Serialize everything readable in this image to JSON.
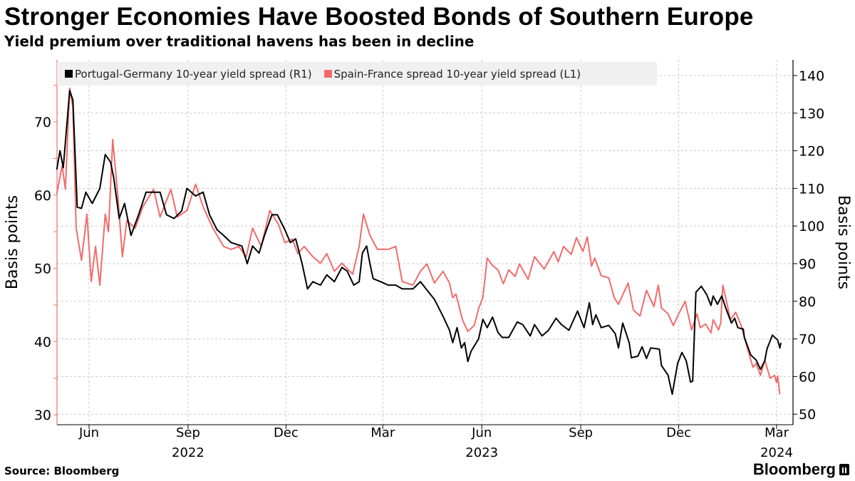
{
  "header": {
    "title": "Stronger Economies Have Boosted Bonds of Southern Europe",
    "subtitle": "Yield premium over traditional havens has been in decline"
  },
  "footer": {
    "source": "Source: Bloomberg",
    "logo": "Bloomberg"
  },
  "chart_data": {
    "type": "line",
    "title": "Stronger Economies Have Boosted Bonds of Southern Europe",
    "subtitle": "Yield premium over traditional havens has been in decline",
    "legend_position": "top-left",
    "grid": true,
    "y_left": {
      "label": "Basis points",
      "range": [
        29,
        77
      ],
      "ticks": [
        30,
        40,
        50,
        60,
        70
      ]
    },
    "y_right": {
      "label": "Basis points",
      "range": [
        48,
        143
      ],
      "ticks": [
        50,
        60,
        70,
        80,
        90,
        100,
        110,
        120,
        130,
        140
      ]
    },
    "x_axis": {
      "range": [
        "2022-05-02",
        "2024-03-22"
      ],
      "ticks": [
        {
          "date": "2022-06-01",
          "label": "Jun",
          "year": ""
        },
        {
          "date": "2022-09-01",
          "label": "Sep",
          "year": "2022"
        },
        {
          "date": "2022-12-01",
          "label": "Dec",
          "year": ""
        },
        {
          "date": "2023-03-01",
          "label": "Mar",
          "year": ""
        },
        {
          "date": "2023-06-01",
          "label": "Jun",
          "year": "2023"
        },
        {
          "date": "2023-09-01",
          "label": "Sep",
          "year": ""
        },
        {
          "date": "2023-12-01",
          "label": "Dec",
          "year": ""
        },
        {
          "date": "2024-03-01",
          "label": "Mar",
          "year": "2024"
        }
      ]
    },
    "series": [
      {
        "name": "Portugal-Germany 10-year yield spread (R1)",
        "axis": "right",
        "color": "#000000",
        "points": [
          [
            "2022-05-02",
            115
          ],
          [
            "2022-05-05",
            120
          ],
          [
            "2022-05-08",
            115.5
          ],
          [
            "2022-05-14",
            136
          ],
          [
            "2022-05-17",
            133.5
          ],
          [
            "2022-05-21",
            105
          ],
          [
            "2022-05-25",
            104.7
          ],
          [
            "2022-05-29",
            109
          ],
          [
            "2022-06-04",
            106
          ],
          [
            "2022-06-11",
            110
          ],
          [
            "2022-06-16",
            119
          ],
          [
            "2022-06-21",
            117
          ],
          [
            "2022-06-24",
            112.7
          ],
          [
            "2022-06-29",
            102
          ],
          [
            "2022-07-04",
            106
          ],
          [
            "2022-07-10",
            97.5
          ],
          [
            "2022-07-17",
            103
          ],
          [
            "2022-07-24",
            109
          ],
          [
            "2022-07-31",
            109
          ],
          [
            "2022-08-06",
            109
          ],
          [
            "2022-08-12",
            103
          ],
          [
            "2022-08-19",
            102
          ],
          [
            "2022-08-26",
            104
          ],
          [
            "2022-08-31",
            110
          ],
          [
            "2022-09-08",
            108
          ],
          [
            "2022-09-15",
            109
          ],
          [
            "2022-09-21",
            103
          ],
          [
            "2022-09-28",
            99
          ],
          [
            "2022-10-04",
            97.5
          ],
          [
            "2022-10-11",
            95.6
          ],
          [
            "2022-10-21",
            94.7
          ],
          [
            "2022-10-26",
            90
          ],
          [
            "2022-10-31",
            94.7
          ],
          [
            "2022-11-06",
            92.8
          ],
          [
            "2022-11-11",
            97.5
          ],
          [
            "2022-11-18",
            103
          ],
          [
            "2022-11-23",
            103
          ],
          [
            "2022-11-30",
            99
          ],
          [
            "2022-12-05",
            95.6
          ],
          [
            "2022-12-10",
            96.6
          ],
          [
            "2022-12-16",
            90
          ],
          [
            "2022-12-21",
            83.3
          ],
          [
            "2022-12-26",
            85.2
          ],
          [
            "2023-01-02",
            84.3
          ],
          [
            "2023-01-08",
            87
          ],
          [
            "2023-01-15",
            85.2
          ],
          [
            "2023-01-22",
            89
          ],
          [
            "2023-01-27",
            88
          ],
          [
            "2023-02-02",
            84.3
          ],
          [
            "2023-02-07",
            85.2
          ],
          [
            "2023-02-10",
            92.8
          ],
          [
            "2023-02-14",
            94.7
          ],
          [
            "2023-02-17",
            90
          ],
          [
            "2023-02-20",
            86
          ],
          [
            "2023-02-27",
            85.2
          ],
          [
            "2023-03-06",
            84.3
          ],
          [
            "2023-03-13",
            84.3
          ],
          [
            "2023-03-19",
            83.3
          ],
          [
            "2023-03-29",
            83.3
          ],
          [
            "2023-04-05",
            85.2
          ],
          [
            "2023-04-11",
            83
          ],
          [
            "2023-04-18",
            80.5
          ],
          [
            "2023-04-26",
            76
          ],
          [
            "2023-05-02",
            72.3
          ],
          [
            "2023-05-05",
            69
          ],
          [
            "2023-05-09",
            73
          ],
          [
            "2023-05-13",
            67.6
          ],
          [
            "2023-05-16",
            69
          ],
          [
            "2023-05-19",
            64
          ],
          [
            "2023-05-22",
            66.7
          ],
          [
            "2023-05-29",
            70
          ],
          [
            "2023-06-02",
            75.2
          ],
          [
            "2023-06-06",
            73
          ],
          [
            "2023-06-11",
            75.8
          ],
          [
            "2023-06-16",
            71.7
          ],
          [
            "2023-06-20",
            70.4
          ],
          [
            "2023-06-26",
            70.4
          ],
          [
            "2023-07-04",
            74.5
          ],
          [
            "2023-07-09",
            73.8
          ],
          [
            "2023-07-16",
            70.8
          ],
          [
            "2023-07-20",
            73.8
          ],
          [
            "2023-07-27",
            70.8
          ],
          [
            "2023-08-02",
            72.3
          ],
          [
            "2023-08-09",
            75.5
          ],
          [
            "2023-08-14",
            73.8
          ],
          [
            "2023-08-21",
            72.3
          ],
          [
            "2023-08-29",
            77.4
          ],
          [
            "2023-09-04",
            73
          ],
          [
            "2023-09-09",
            79.6
          ],
          [
            "2023-09-12",
            73.8
          ],
          [
            "2023-09-15",
            76.4
          ],
          [
            "2023-09-20",
            73
          ],
          [
            "2023-09-27",
            73.6
          ],
          [
            "2023-10-03",
            71.4
          ],
          [
            "2023-10-06",
            67.6
          ],
          [
            "2023-10-10",
            74.2
          ],
          [
            "2023-10-16",
            69
          ],
          [
            "2023-10-18",
            65
          ],
          [
            "2023-10-24",
            65.4
          ],
          [
            "2023-10-28",
            67.9
          ],
          [
            "2023-11-01",
            64.8
          ],
          [
            "2023-11-05",
            67.6
          ],
          [
            "2023-11-13",
            67.3
          ],
          [
            "2023-11-15",
            62.9
          ],
          [
            "2023-11-21",
            60.4
          ],
          [
            "2023-11-25",
            55.3
          ],
          [
            "2023-11-30",
            63.5
          ],
          [
            "2023-12-04",
            66.4
          ],
          [
            "2023-12-08",
            64.2
          ],
          [
            "2023-12-12",
            58.5
          ],
          [
            "2023-12-14",
            58.8
          ],
          [
            "2023-12-17",
            82.4
          ],
          [
            "2023-12-22",
            84
          ],
          [
            "2023-12-27",
            81.8
          ],
          [
            "2023-12-31",
            78.9
          ],
          [
            "2024-01-02",
            81.4
          ],
          [
            "2024-01-06",
            79.2
          ],
          [
            "2024-01-10",
            81.4
          ],
          [
            "2024-01-14",
            78
          ],
          [
            "2024-01-19",
            74.2
          ],
          [
            "2024-01-22",
            75.5
          ],
          [
            "2024-01-25",
            73
          ],
          [
            "2024-01-30",
            72.6
          ],
          [
            "2024-01-31",
            70.4
          ],
          [
            "2024-02-06",
            65.7
          ],
          [
            "2024-02-11",
            64.4
          ],
          [
            "2024-02-15",
            61.9
          ],
          [
            "2024-02-19",
            64.2
          ],
          [
            "2024-02-21",
            67.3
          ],
          [
            "2024-02-26",
            71
          ],
          [
            "2024-03-02",
            69.7
          ],
          [
            "2024-03-04",
            67.6
          ],
          [
            "2024-03-05",
            69
          ]
        ]
      },
      {
        "name": "Spain-France spread 10-year yield spread (L1)",
        "axis": "left",
        "color": "#f26b6b",
        "points": [
          [
            "2022-05-02",
            60.2
          ],
          [
            "2022-05-07",
            64
          ],
          [
            "2022-05-10",
            60.8
          ],
          [
            "2022-05-14",
            74.6
          ],
          [
            "2022-05-17",
            72
          ],
          [
            "2022-05-20",
            55.5
          ],
          [
            "2022-05-25",
            51.1
          ],
          [
            "2022-05-30",
            57.4
          ],
          [
            "2022-06-03",
            48.2
          ],
          [
            "2022-06-07",
            53
          ],
          [
            "2022-06-11",
            47.7
          ],
          [
            "2022-06-16",
            57.4
          ],
          [
            "2022-06-19",
            55
          ],
          [
            "2022-06-23",
            67.6
          ],
          [
            "2022-06-28",
            59.4
          ],
          [
            "2022-07-02",
            51.6
          ],
          [
            "2022-07-06",
            56.5
          ],
          [
            "2022-07-14",
            55.5
          ],
          [
            "2022-07-21",
            58.4
          ],
          [
            "2022-07-31",
            60.8
          ],
          [
            "2022-08-06",
            57
          ],
          [
            "2022-08-16",
            60.8
          ],
          [
            "2022-08-22",
            57
          ],
          [
            "2022-08-31",
            57.9
          ],
          [
            "2022-09-08",
            61.5
          ],
          [
            "2022-09-15",
            58.4
          ],
          [
            "2022-09-24",
            55.5
          ],
          [
            "2022-10-04",
            53
          ],
          [
            "2022-10-11",
            52.6
          ],
          [
            "2022-10-18",
            53
          ],
          [
            "2022-10-25",
            51.6
          ],
          [
            "2022-10-31",
            55.5
          ],
          [
            "2022-11-08",
            53
          ],
          [
            "2022-11-16",
            57.9
          ],
          [
            "2022-11-24",
            56
          ],
          [
            "2022-11-30",
            53.5
          ],
          [
            "2022-12-07",
            54
          ],
          [
            "2022-12-12",
            52
          ],
          [
            "2022-12-18",
            53
          ],
          [
            "2022-12-26",
            51.6
          ],
          [
            "2023-01-02",
            50.7
          ],
          [
            "2023-01-08",
            52
          ],
          [
            "2023-01-15",
            49.6
          ],
          [
            "2023-01-22",
            50.7
          ],
          [
            "2023-02-01",
            49.2
          ],
          [
            "2023-02-07",
            53
          ],
          [
            "2023-02-11",
            57.4
          ],
          [
            "2023-02-17",
            54.5
          ],
          [
            "2023-02-24",
            52.6
          ],
          [
            "2023-03-06",
            52.6
          ],
          [
            "2023-03-13",
            53
          ],
          [
            "2023-03-19",
            48.2
          ],
          [
            "2023-03-29",
            47.7
          ],
          [
            "2023-04-05",
            49.6
          ],
          [
            "2023-04-11",
            50.6
          ],
          [
            "2023-04-18",
            48
          ],
          [
            "2023-04-26",
            49.6
          ],
          [
            "2023-05-02",
            48
          ],
          [
            "2023-05-05",
            46
          ],
          [
            "2023-05-08",
            46.5
          ],
          [
            "2023-05-14",
            43
          ],
          [
            "2023-05-19",
            41.4
          ],
          [
            "2023-05-25",
            42.2
          ],
          [
            "2023-05-29",
            44.5
          ],
          [
            "2023-06-02",
            46
          ],
          [
            "2023-06-06",
            51.4
          ],
          [
            "2023-06-11",
            50.4
          ],
          [
            "2023-06-16",
            49.8
          ],
          [
            "2023-06-21",
            47.9
          ],
          [
            "2023-06-26",
            49.8
          ],
          [
            "2023-07-02",
            48.9
          ],
          [
            "2023-07-06",
            50.6
          ],
          [
            "2023-07-14",
            48.5
          ],
          [
            "2023-07-20",
            51.6
          ],
          [
            "2023-07-29",
            49.9
          ],
          [
            "2023-08-07",
            52.3
          ],
          [
            "2023-08-11",
            50.9
          ],
          [
            "2023-08-16",
            53
          ],
          [
            "2023-08-23",
            51.9
          ],
          [
            "2023-08-28",
            54.2
          ],
          [
            "2023-09-03",
            52.3
          ],
          [
            "2023-09-07",
            54.3
          ],
          [
            "2023-09-11",
            50.3
          ],
          [
            "2023-09-14",
            51.4
          ],
          [
            "2023-09-20",
            49
          ],
          [
            "2023-09-27",
            48.7
          ],
          [
            "2023-10-02",
            46
          ],
          [
            "2023-10-06",
            45.1
          ],
          [
            "2023-10-15",
            48
          ],
          [
            "2023-10-20",
            44.3
          ],
          [
            "2023-10-26",
            43.5
          ],
          [
            "2023-11-01",
            47
          ],
          [
            "2023-11-08",
            44.8
          ],
          [
            "2023-11-12",
            47.7
          ],
          [
            "2023-11-15",
            44.6
          ],
          [
            "2023-11-21",
            43.8
          ],
          [
            "2023-11-26",
            42.2
          ],
          [
            "2023-11-30",
            43.5
          ],
          [
            "2023-12-07",
            45.5
          ],
          [
            "2023-12-13",
            41.6
          ],
          [
            "2023-12-18",
            43.8
          ],
          [
            "2023-12-21",
            41.9
          ],
          [
            "2023-12-26",
            42.4
          ],
          [
            "2023-12-31",
            41.2
          ],
          [
            "2024-01-02",
            43
          ],
          [
            "2024-01-07",
            41.6
          ],
          [
            "2024-01-09",
            42.5
          ],
          [
            "2024-01-11",
            47.7
          ],
          [
            "2024-01-14",
            45.8
          ],
          [
            "2024-01-18",
            43
          ],
          [
            "2024-01-23",
            44
          ],
          [
            "2024-01-28",
            42.2
          ],
          [
            "2024-02-03",
            39
          ],
          [
            "2024-02-08",
            36.5
          ],
          [
            "2024-02-11",
            37
          ],
          [
            "2024-02-15",
            35.4
          ],
          [
            "2024-02-19",
            37.5
          ],
          [
            "2024-02-24",
            35
          ],
          [
            "2024-02-28",
            35.4
          ],
          [
            "2024-03-01",
            34.4
          ],
          [
            "2024-03-02",
            35.3
          ],
          [
            "2024-03-04",
            32.8
          ]
        ]
      }
    ]
  }
}
